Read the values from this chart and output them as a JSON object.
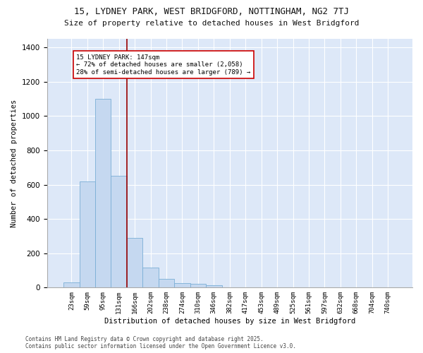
{
  "title_line1": "15, LYDNEY PARK, WEST BRIDGFORD, NOTTINGHAM, NG2 7TJ",
  "title_line2": "Size of property relative to detached houses in West Bridgford",
  "xlabel": "Distribution of detached houses by size in West Bridgford",
  "ylabel": "Number of detached properties",
  "bar_labels": [
    "23sqm",
    "59sqm",
    "95sqm",
    "131sqm",
    "166sqm",
    "202sqm",
    "238sqm",
    "274sqm",
    "310sqm",
    "346sqm",
    "382sqm",
    "417sqm",
    "453sqm",
    "489sqm",
    "525sqm",
    "561sqm",
    "597sqm",
    "632sqm",
    "668sqm",
    "704sqm",
    "740sqm"
  ],
  "bar_values": [
    30,
    620,
    1100,
    650,
    290,
    115,
    50,
    25,
    20,
    15,
    0,
    0,
    0,
    0,
    0,
    0,
    0,
    0,
    0,
    0,
    0
  ],
  "bar_color": "#c5d8f0",
  "bar_edge_color": "#7aaed6",
  "vline_x": 3.5,
  "vline_color": "#990000",
  "annotation_text": "15 LYDNEY PARK: 147sqm\n← 72% of detached houses are smaller (2,058)\n28% of semi-detached houses are larger (789) →",
  "annotation_box_color": "#ffffff",
  "annotation_box_edge": "#cc0000",
  "ylim": [
    0,
    1450
  ],
  "yticks": [
    0,
    200,
    400,
    600,
    800,
    1000,
    1200,
    1400
  ],
  "background_color": "#dde8f8",
  "grid_color": "#ffffff",
  "fig_background": "#ffffff",
  "footer_line1": "Contains HM Land Registry data © Crown copyright and database right 2025.",
  "footer_line2": "Contains public sector information licensed under the Open Government Licence v3.0."
}
